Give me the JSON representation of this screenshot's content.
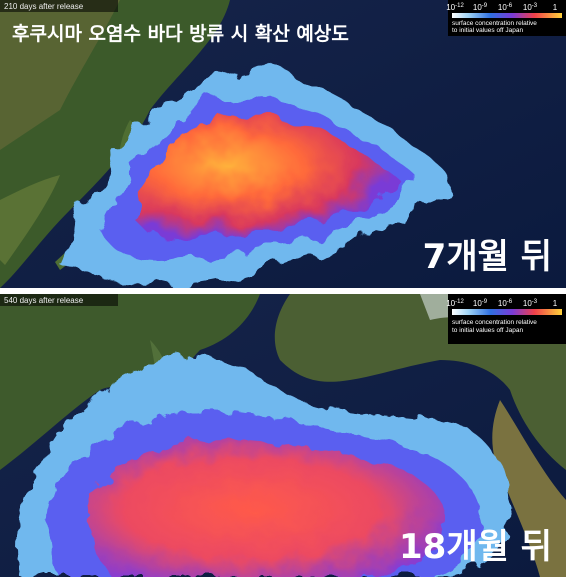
{
  "panels": [
    {
      "days_label": "210 days after release",
      "title": "후쿠시마 오염수 바다 방류 시 확산 예상도",
      "legend": {
        "ticks": [
          {
            "base": "10",
            "exp": "-12"
          },
          {
            "base": "10",
            "exp": "-9"
          },
          {
            "base": "10",
            "exp": "-6"
          },
          {
            "base": "10",
            "exp": "-3"
          },
          {
            "base": "1"
          }
        ],
        "caption": [
          "surface concentration relative",
          "to initial values off Japan"
        ]
      },
      "time_label": "7개월 뒤"
    },
    {
      "days_label": "540 days after release",
      "legend": {
        "ticks": [
          {
            "base": "10",
            "exp": "-12"
          },
          {
            "base": "10",
            "exp": "-9"
          },
          {
            "base": "10",
            "exp": "-6"
          },
          {
            "base": "10",
            "exp": "-3"
          },
          {
            "base": "1"
          }
        ],
        "caption": [
          "surface concentration relative",
          "to initial values off Japan"
        ]
      },
      "time_label": "18개월 뒤"
    }
  ]
}
